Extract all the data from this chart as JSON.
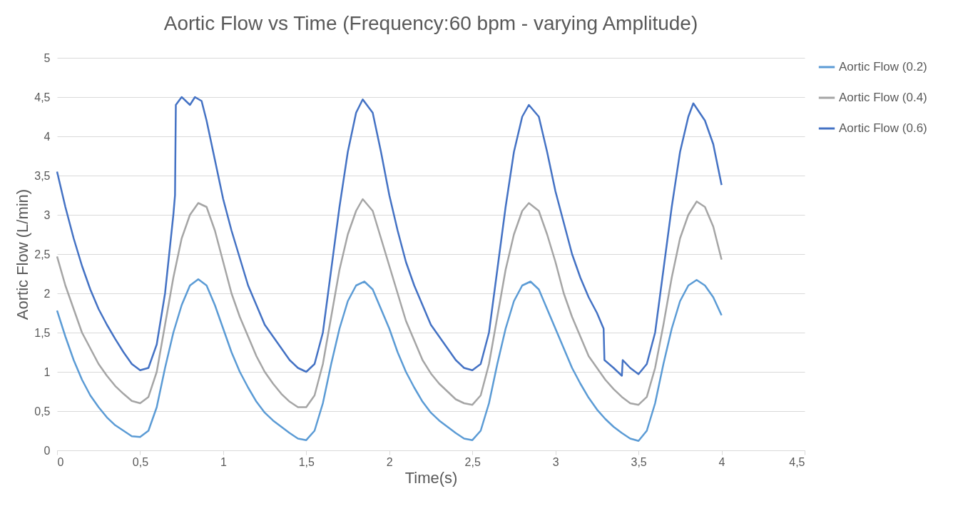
{
  "chart_data": {
    "type": "line",
    "title": "Aortic Flow vs Time (Frequency:60 bpm - varying Amplitude)",
    "xlabel": "Time(s)",
    "ylabel": "Aortic Flow (L/min)",
    "xlim": [
      0,
      4.5
    ],
    "ylim": [
      0,
      5
    ],
    "xticks": [
      0,
      {
        "value": 0.5,
        "label": "0,5"
      },
      1,
      {
        "value": 1.5,
        "label": "1,5"
      },
      2,
      {
        "value": 2.5,
        "label": "2,5"
      },
      3,
      {
        "value": 3.5,
        "label": "3,5"
      },
      4,
      {
        "value": 4.5,
        "label": "4,5"
      }
    ],
    "yticks": [
      0,
      {
        "value": 0.5,
        "label": "0,5"
      },
      1,
      {
        "value": 1.5,
        "label": "1,5"
      },
      2,
      {
        "value": 2.5,
        "label": "2,5"
      },
      3,
      {
        "value": 3.5,
        "label": "3,5"
      },
      4,
      {
        "value": 4.5,
        "label": "4,5"
      },
      5
    ],
    "grid": "y",
    "legend": "right",
    "marker": "none",
    "line_style": "solid",
    "series": [
      {
        "name": "Aortic Flow (0.2)",
        "color": "#5b9bd5",
        "x": [
          0,
          0.05,
          0.1,
          0.15,
          0.2,
          0.25,
          0.3,
          0.35,
          0.4,
          0.45,
          0.5,
          0.55,
          0.6,
          0.65,
          0.7,
          0.75,
          0.8,
          0.85,
          0.9,
          0.95,
          1.0,
          1.05,
          1.1,
          1.15,
          1.2,
          1.25,
          1.3,
          1.35,
          1.4,
          1.45,
          1.5,
          1.55,
          1.6,
          1.65,
          1.7,
          1.75,
          1.8,
          1.85,
          1.9,
          1.95,
          2.0,
          2.05,
          2.1,
          2.15,
          2.2,
          2.25,
          2.3,
          2.35,
          2.4,
          2.45,
          2.5,
          2.55,
          2.6,
          2.65,
          2.7,
          2.75,
          2.8,
          2.85,
          2.9,
          2.95,
          3.0,
          3.05,
          3.1,
          3.15,
          3.2,
          3.25,
          3.3,
          3.35,
          3.4,
          3.45,
          3.5,
          3.55,
          3.6,
          3.65,
          3.7,
          3.75,
          3.8,
          3.85,
          3.9,
          3.95,
          4.0
        ],
        "values": [
          1.78,
          1.45,
          1.15,
          0.9,
          0.7,
          0.55,
          0.42,
          0.32,
          0.25,
          0.18,
          0.17,
          0.25,
          0.55,
          1.05,
          1.5,
          1.85,
          2.1,
          2.18,
          2.1,
          1.85,
          1.55,
          1.25,
          1.0,
          0.8,
          0.62,
          0.48,
          0.38,
          0.3,
          0.22,
          0.15,
          0.13,
          0.25,
          0.6,
          1.1,
          1.55,
          1.9,
          2.1,
          2.15,
          2.05,
          1.8,
          1.55,
          1.25,
          1.0,
          0.8,
          0.62,
          0.48,
          0.38,
          0.3,
          0.22,
          0.15,
          0.13,
          0.25,
          0.6,
          1.1,
          1.55,
          1.9,
          2.1,
          2.15,
          2.05,
          1.8,
          1.55,
          1.3,
          1.05,
          0.85,
          0.67,
          0.52,
          0.4,
          0.3,
          0.22,
          0.15,
          0.12,
          0.25,
          0.6,
          1.1,
          1.55,
          1.9,
          2.1,
          2.17,
          2.1,
          1.95,
          1.72
        ]
      },
      {
        "name": "Aortic Flow (0.4)",
        "color": "#a5a5a5",
        "x": [
          0,
          0.05,
          0.1,
          0.15,
          0.2,
          0.25,
          0.3,
          0.35,
          0.4,
          0.45,
          0.5,
          0.55,
          0.6,
          0.65,
          0.7,
          0.75,
          0.8,
          0.85,
          0.9,
          0.95,
          1.0,
          1.05,
          1.1,
          1.15,
          1.2,
          1.25,
          1.3,
          1.35,
          1.4,
          1.45,
          1.5,
          1.55,
          1.6,
          1.65,
          1.7,
          1.75,
          1.8,
          1.84,
          1.9,
          1.95,
          2.0,
          2.05,
          2.1,
          2.15,
          2.2,
          2.25,
          2.3,
          2.35,
          2.4,
          2.45,
          2.5,
          2.55,
          2.6,
          2.65,
          2.7,
          2.75,
          2.8,
          2.84,
          2.9,
          2.95,
          3.0,
          3.05,
          3.1,
          3.15,
          3.2,
          3.25,
          3.3,
          3.35,
          3.4,
          3.45,
          3.5,
          3.55,
          3.6,
          3.65,
          3.7,
          3.75,
          3.8,
          3.85,
          3.9,
          3.95,
          4.0
        ],
        "values": [
          2.47,
          2.1,
          1.8,
          1.5,
          1.3,
          1.1,
          0.95,
          0.82,
          0.72,
          0.63,
          0.6,
          0.68,
          1.0,
          1.6,
          2.2,
          2.7,
          3.0,
          3.15,
          3.1,
          2.8,
          2.4,
          2.0,
          1.7,
          1.45,
          1.2,
          1.0,
          0.85,
          0.72,
          0.62,
          0.55,
          0.55,
          0.7,
          1.1,
          1.7,
          2.3,
          2.75,
          3.05,
          3.2,
          3.05,
          2.7,
          2.35,
          2.0,
          1.65,
          1.4,
          1.15,
          0.98,
          0.85,
          0.75,
          0.65,
          0.6,
          0.58,
          0.7,
          1.1,
          1.7,
          2.3,
          2.75,
          3.05,
          3.15,
          3.05,
          2.75,
          2.4,
          2.0,
          1.7,
          1.45,
          1.2,
          1.05,
          0.9,
          0.78,
          0.68,
          0.6,
          0.58,
          0.68,
          1.05,
          1.6,
          2.2,
          2.7,
          3.0,
          3.17,
          3.1,
          2.85,
          2.43
        ]
      },
      {
        "name": "Aortic Flow (0.6)",
        "color": "#4472c4",
        "x": [
          0,
          0.05,
          0.1,
          0.15,
          0.2,
          0.25,
          0.3,
          0.35,
          0.4,
          0.45,
          0.5,
          0.55,
          0.6,
          0.65,
          0.7,
          0.71,
          0.715,
          0.75,
          0.8,
          0.83,
          0.87,
          0.9,
          0.95,
          1.0,
          1.05,
          1.1,
          1.15,
          1.2,
          1.25,
          1.3,
          1.35,
          1.4,
          1.45,
          1.5,
          1.55,
          1.6,
          1.65,
          1.7,
          1.75,
          1.8,
          1.84,
          1.9,
          1.95,
          2.0,
          2.05,
          2.1,
          2.15,
          2.2,
          2.25,
          2.3,
          2.35,
          2.4,
          2.45,
          2.5,
          2.55,
          2.6,
          2.65,
          2.7,
          2.75,
          2.8,
          2.84,
          2.9,
          2.95,
          3.0,
          3.05,
          3.1,
          3.15,
          3.2,
          3.25,
          3.29,
          3.295,
          3.35,
          3.4,
          3.405,
          3.45,
          3.5,
          3.55,
          3.6,
          3.65,
          3.7,
          3.75,
          3.8,
          3.83,
          3.9,
          3.95,
          4.0
        ],
        "values": [
          3.55,
          3.1,
          2.7,
          2.35,
          2.05,
          1.8,
          1.6,
          1.42,
          1.25,
          1.1,
          1.02,
          1.05,
          1.35,
          2.0,
          3.0,
          3.25,
          4.4,
          4.5,
          4.4,
          4.5,
          4.45,
          4.2,
          3.7,
          3.2,
          2.8,
          2.45,
          2.1,
          1.85,
          1.6,
          1.45,
          1.3,
          1.15,
          1.05,
          1.0,
          1.1,
          1.5,
          2.3,
          3.1,
          3.8,
          4.3,
          4.47,
          4.3,
          3.8,
          3.25,
          2.8,
          2.4,
          2.1,
          1.85,
          1.6,
          1.45,
          1.3,
          1.15,
          1.05,
          1.02,
          1.1,
          1.5,
          2.3,
          3.1,
          3.8,
          4.25,
          4.4,
          4.25,
          3.8,
          3.3,
          2.9,
          2.5,
          2.2,
          1.95,
          1.75,
          1.55,
          1.15,
          1.05,
          0.95,
          1.15,
          1.05,
          0.97,
          1.1,
          1.5,
          2.3,
          3.1,
          3.8,
          4.25,
          4.42,
          4.2,
          3.9,
          3.38
        ]
      }
    ]
  }
}
